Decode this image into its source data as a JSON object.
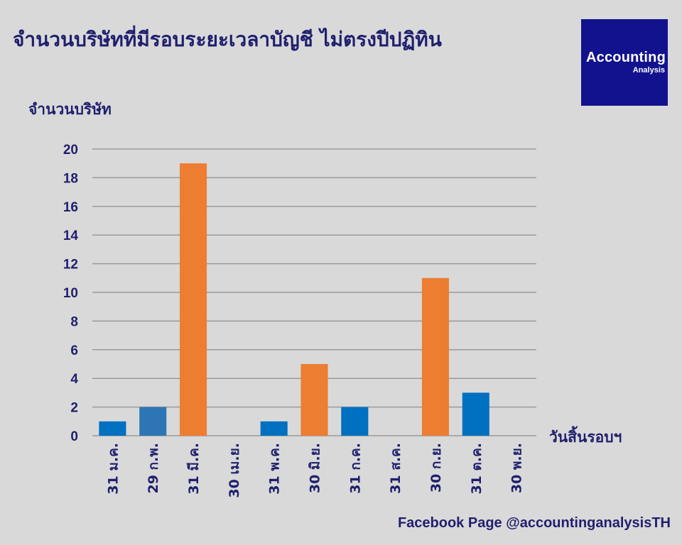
{
  "header": {
    "title": "จำนวนบริษัทที่มีรอบระยะเวลาบัญชี ไม่ตรงปีปฏิทิน"
  },
  "logo": {
    "line1": "Accounting",
    "line2": "Analysis",
    "background": "#12128f"
  },
  "footer": {
    "text": "Facebook Page @accountinganalysisTH"
  },
  "chart_data": {
    "type": "bar",
    "title": "จำนวนบริษัทที่มีรอบระยะเวลาบัญชี ไม่ตรงปีปฏิทิน",
    "ylabel": "จำนวนบริษัท",
    "xlabel": "วันสิ้นรอบฯ",
    "ylim": [
      0,
      20
    ],
    "yticks": [
      0,
      2,
      4,
      6,
      8,
      10,
      12,
      14,
      16,
      18,
      20
    ],
    "grid": true,
    "categories": [
      "31 ม.ค.",
      "29 ก.พ.",
      "31 มี.ค.",
      "30 เม.ย.",
      "31 พ.ค.",
      "30 มิ.ย.",
      "31 ก.ค.",
      "31 ส.ค.",
      "30 ก.ย.",
      "31 ต.ค.",
      "30 พ.ย."
    ],
    "values": [
      1,
      2,
      19,
      0,
      1,
      5,
      2,
      0,
      11,
      3,
      0
    ],
    "colors": [
      "#0070c0",
      "#2e75b6",
      "#ed7d31",
      "#0070c0",
      "#0070c0",
      "#ed7d31",
      "#0070c0",
      "#0070c0",
      "#ed7d31",
      "#0070c0",
      "#0070c0"
    ]
  }
}
